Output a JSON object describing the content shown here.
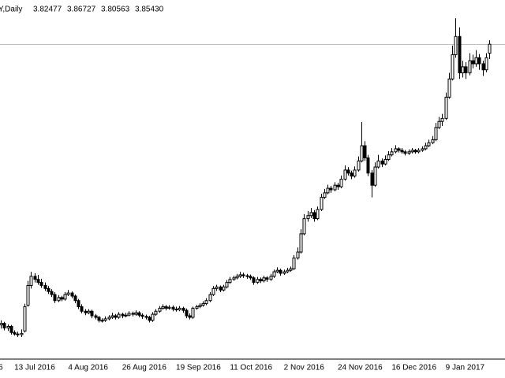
{
  "chart_data": {
    "type": "candlestick",
    "header": {
      "symbol": "Y,Daily",
      "ohlc": [
        "3.82477",
        "3.86727",
        "3.80563",
        "3.85430"
      ]
    },
    "cut_label": "6",
    "ylim": [
      2.82,
      4.0
    ],
    "bull_color": "#ffffff",
    "bear_color": "#000000",
    "categories": [
      null,
      null,
      null,
      null,
      "13 Jul 2016",
      null,
      null,
      null,
      null,
      null,
      null,
      null,
      null,
      null,
      null,
      null,
      null,
      null,
      null,
      null,
      "4 Aug 2016",
      null,
      null,
      null,
      null,
      null,
      null,
      null,
      null,
      null,
      null,
      null,
      null,
      null,
      null,
      null,
      "26 Aug 2016",
      null,
      null,
      null,
      null,
      null,
      null,
      null,
      null,
      null,
      null,
      null,
      null,
      null,
      null,
      null,
      "19 Sep 2016",
      null,
      null,
      null,
      null,
      null,
      null,
      null,
      null,
      null,
      null,
      null,
      null,
      null,
      null,
      null,
      "11 Oct 2016",
      null,
      null,
      null,
      null,
      null,
      null,
      null,
      null,
      null,
      null,
      null,
      null,
      null,
      null,
      null,
      "2 Nov 2016",
      null,
      null,
      null,
      null,
      null,
      null,
      null,
      null,
      null,
      null,
      null,
      null,
      null,
      null,
      null,
      "24 Nov 2016",
      null,
      null,
      null,
      null,
      null,
      null,
      null,
      null,
      null,
      null,
      null,
      null,
      null,
      null,
      null,
      "16 Dec 2016",
      null,
      null,
      null,
      null,
      null,
      null,
      null,
      null,
      null,
      null,
      null,
      null,
      null,
      null,
      null,
      "9 Jan 2017",
      null,
      null,
      null,
      null,
      null,
      null,
      null,
      null,
      null,
      null,
      null,
      null,
      null
    ],
    "ohlc": [
      [
        2.93,
        2.945,
        2.918,
        2.935
      ],
      [
        2.935,
        2.94,
        2.912,
        2.92
      ],
      [
        2.92,
        2.932,
        2.91,
        2.925
      ],
      [
        2.925,
        2.93,
        2.898,
        2.905
      ],
      [
        2.905,
        2.912,
        2.895,
        2.9
      ],
      [
        2.9,
        2.908,
        2.89,
        2.898
      ],
      [
        2.898,
        2.915,
        2.89,
        2.902
      ],
      [
        2.91,
        3.0,
        2.905,
        2.99
      ],
      [
        2.995,
        3.075,
        2.99,
        3.06
      ],
      [
        3.06,
        3.105,
        3.05,
        3.09
      ],
      [
        3.09,
        3.1,
        3.07,
        3.08
      ],
      [
        3.08,
        3.095,
        3.062,
        3.07
      ],
      [
        3.07,
        3.082,
        3.052,
        3.06
      ],
      [
        3.06,
        3.07,
        3.042,
        3.05
      ],
      [
        3.05,
        3.058,
        3.032,
        3.04
      ],
      [
        3.04,
        3.048,
        3.022,
        3.03
      ],
      [
        3.03,
        3.038,
        3.002,
        3.01
      ],
      [
        3.01,
        3.028,
        3.005,
        3.02
      ],
      [
        3.02,
        3.026,
        3.008,
        3.015
      ],
      [
        3.015,
        3.038,
        3.01,
        3.03
      ],
      [
        3.03,
        3.045,
        3.025,
        3.035
      ],
      [
        3.035,
        3.04,
        3.018,
        3.025
      ],
      [
        3.025,
        3.03,
        3.002,
        3.01
      ],
      [
        3.01,
        3.015,
        2.982,
        2.99
      ],
      [
        2.99,
        2.998,
        2.968,
        2.975
      ],
      [
        2.975,
        2.982,
        2.962,
        2.97
      ],
      [
        2.97,
        2.982,
        2.965,
        2.975
      ],
      [
        2.975,
        2.98,
        2.952,
        2.96
      ],
      [
        2.96,
        2.966,
        2.948,
        2.955
      ],
      [
        2.955,
        2.96,
        2.938,
        2.945
      ],
      [
        2.945,
        2.952,
        2.938,
        2.945
      ],
      [
        2.945,
        2.958,
        2.94,
        2.95
      ],
      [
        2.95,
        2.962,
        2.945,
        2.955
      ],
      [
        2.955,
        2.97,
        2.95,
        2.96
      ],
      [
        2.96,
        2.966,
        2.948,
        2.955
      ],
      [
        2.955,
        2.972,
        2.95,
        2.965
      ],
      [
        2.965,
        2.97,
        2.952,
        2.96
      ],
      [
        2.96,
        2.97,
        2.955,
        2.962
      ],
      [
        2.962,
        2.975,
        2.958,
        2.968
      ],
      [
        2.968,
        2.974,
        2.958,
        2.965
      ],
      [
        2.965,
        2.978,
        2.96,
        2.97
      ],
      [
        2.97,
        2.975,
        2.955,
        2.962
      ],
      [
        2.962,
        2.968,
        2.95,
        2.958
      ],
      [
        2.958,
        2.964,
        2.948,
        2.955
      ],
      [
        2.955,
        2.96,
        2.938,
        2.945
      ],
      [
        2.945,
        2.972,
        2.94,
        2.965
      ],
      [
        2.965,
        2.982,
        2.96,
        2.975
      ],
      [
        2.975,
        2.992,
        2.97,
        2.985
      ],
      [
        2.985,
        2.998,
        2.98,
        2.99
      ],
      [
        2.99,
        2.996,
        2.978,
        2.985
      ],
      [
        2.985,
        2.995,
        2.98,
        2.988
      ],
      [
        2.988,
        2.994,
        2.975,
        2.982
      ],
      [
        2.982,
        2.99,
        2.974,
        2.98
      ],
      [
        2.98,
        2.992,
        2.975,
        2.985
      ],
      [
        2.985,
        2.99,
        2.97,
        2.978
      ],
      [
        2.978,
        2.984,
        2.952,
        2.96
      ],
      [
        2.96,
        2.968,
        2.948,
        2.955
      ],
      [
        2.955,
        2.99,
        2.95,
        2.985
      ],
      [
        2.985,
        2.996,
        2.98,
        2.99
      ],
      [
        2.99,
        3.002,
        2.985,
        2.995
      ],
      [
        2.995,
        3.008,
        2.99,
        3.0
      ],
      [
        3.0,
        3.018,
        2.995,
        3.01
      ],
      [
        3.01,
        3.038,
        3.005,
        3.03
      ],
      [
        3.03,
        3.058,
        3.025,
        3.05
      ],
      [
        3.05,
        3.062,
        3.042,
        3.055
      ],
      [
        3.055,
        3.06,
        3.038,
        3.045
      ],
      [
        3.045,
        3.062,
        3.04,
        3.055
      ],
      [
        3.055,
        3.078,
        3.05,
        3.07
      ],
      [
        3.07,
        3.088,
        3.065,
        3.08
      ],
      [
        3.08,
        3.092,
        3.075,
        3.085
      ],
      [
        3.085,
        3.098,
        3.08,
        3.09
      ],
      [
        3.09,
        3.105,
        3.085,
        3.095
      ],
      [
        3.095,
        3.102,
        3.085,
        3.092
      ],
      [
        3.092,
        3.098,
        3.082,
        3.09
      ],
      [
        3.09,
        3.096,
        3.078,
        3.085
      ],
      [
        3.085,
        3.09,
        3.062,
        3.07
      ],
      [
        3.07,
        3.088,
        3.065,
        3.08
      ],
      [
        3.08,
        3.086,
        3.068,
        3.075
      ],
      [
        3.075,
        3.092,
        3.07,
        3.085
      ],
      [
        3.085,
        3.09,
        3.072,
        3.08
      ],
      [
        3.08,
        3.098,
        3.075,
        3.09
      ],
      [
        3.09,
        3.112,
        3.085,
        3.105
      ],
      [
        3.105,
        3.12,
        3.1,
        3.11
      ],
      [
        3.11,
        3.115,
        3.092,
        3.1
      ],
      [
        3.1,
        3.112,
        3.095,
        3.105
      ],
      [
        3.105,
        3.118,
        3.1,
        3.11
      ],
      [
        3.11,
        3.122,
        3.105,
        3.115
      ],
      [
        3.115,
        3.16,
        3.11,
        3.15
      ],
      [
        3.15,
        3.185,
        3.145,
        3.17
      ],
      [
        3.17,
        3.245,
        3.165,
        3.23
      ],
      [
        3.23,
        3.295,
        3.225,
        3.28
      ],
      [
        3.28,
        3.305,
        3.27,
        3.29
      ],
      [
        3.29,
        3.315,
        3.282,
        3.3
      ],
      [
        3.3,
        3.308,
        3.27,
        3.28
      ],
      [
        3.28,
        3.32,
        3.275,
        3.31
      ],
      [
        3.31,
        3.362,
        3.305,
        3.35
      ],
      [
        3.35,
        3.378,
        3.345,
        3.365
      ],
      [
        3.365,
        3.392,
        3.36,
        3.38
      ],
      [
        3.38,
        3.388,
        3.365,
        3.375
      ],
      [
        3.375,
        3.4,
        3.37,
        3.39
      ],
      [
        3.39,
        3.398,
        3.375,
        3.385
      ],
      [
        3.385,
        3.422,
        3.38,
        3.41
      ],
      [
        3.41,
        3.455,
        3.405,
        3.44
      ],
      [
        3.44,
        3.45,
        3.422,
        3.43
      ],
      [
        3.43,
        3.438,
        3.41,
        3.42
      ],
      [
        3.42,
        3.452,
        3.415,
        3.44
      ],
      [
        3.44,
        3.485,
        3.435,
        3.47
      ],
      [
        3.47,
        3.598,
        3.465,
        3.52
      ],
      [
        3.52,
        3.535,
        3.47,
        3.48
      ],
      [
        3.48,
        3.49,
        3.42,
        3.43
      ],
      [
        3.43,
        3.44,
        3.35,
        3.39
      ],
      [
        3.39,
        3.465,
        3.385,
        3.45
      ],
      [
        3.45,
        3.49,
        3.445,
        3.47
      ],
      [
        3.47,
        3.478,
        3.45,
        3.46
      ],
      [
        3.46,
        3.488,
        3.455,
        3.475
      ],
      [
        3.475,
        3.502,
        3.47,
        3.49
      ],
      [
        3.49,
        3.512,
        3.485,
        3.5
      ],
      [
        3.5,
        3.522,
        3.495,
        3.51
      ],
      [
        3.51,
        3.515,
        3.498,
        3.505
      ],
      [
        3.505,
        3.512,
        3.494,
        3.5
      ],
      [
        3.5,
        3.506,
        3.488,
        3.495
      ],
      [
        3.495,
        3.508,
        3.49,
        3.5
      ],
      [
        3.5,
        3.512,
        3.495,
        3.505
      ],
      [
        3.505,
        3.51,
        3.494,
        3.5
      ],
      [
        3.5,
        3.512,
        3.495,
        3.505
      ],
      [
        3.505,
        3.518,
        3.5,
        3.51
      ],
      [
        3.51,
        3.53,
        3.505,
        3.52
      ],
      [
        3.52,
        3.54,
        3.515,
        3.53
      ],
      [
        3.53,
        3.552,
        3.525,
        3.54
      ],
      [
        3.54,
        3.595,
        3.535,
        3.58
      ],
      [
        3.58,
        3.615,
        3.575,
        3.6
      ],
      [
        3.6,
        3.625,
        3.585,
        3.61
      ],
      [
        3.61,
        3.695,
        3.605,
        3.68
      ],
      [
        3.68,
        3.76,
        3.675,
        3.74
      ],
      [
        3.74,
        3.85,
        3.735,
        3.82
      ],
      [
        3.82,
        3.94,
        3.81,
        3.88
      ],
      [
        3.88,
        3.91,
        3.74,
        3.76
      ],
      [
        3.76,
        3.8,
        3.745,
        3.78
      ],
      [
        3.78,
        3.795,
        3.74,
        3.76
      ],
      [
        3.76,
        3.825,
        3.752,
        3.8
      ],
      [
        3.8,
        3.82,
        3.775,
        3.79
      ],
      [
        3.79,
        3.835,
        3.78,
        3.81
      ],
      [
        3.81,
        3.822,
        3.77,
        3.79
      ],
      [
        3.79,
        3.8,
        3.75,
        3.77
      ],
      [
        3.77,
        3.825,
        3.762,
        3.81
      ],
      [
        3.82477,
        3.86727,
        3.80563,
        3.8543
      ]
    ]
  }
}
